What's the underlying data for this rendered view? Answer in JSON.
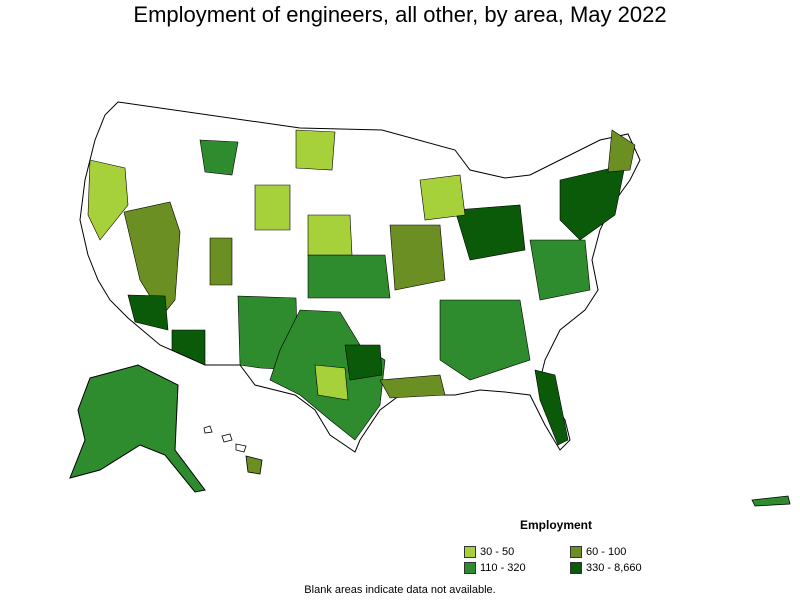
{
  "title": "Employment of engineers, all other, by area, May 2022",
  "legend": {
    "title": "Employment",
    "items": [
      {
        "label": "30 - 50",
        "color": "#a6d13a"
      },
      {
        "label": "60 - 100",
        "color": "#6b8f23"
      },
      {
        "label": "110 - 320",
        "color": "#2e8b2e"
      },
      {
        "label": "330 - 8,660",
        "color": "#0a5a0a"
      }
    ]
  },
  "note": "Blank areas indicate data not available.",
  "colors": {
    "border": "#000000",
    "blank": "#ffffff"
  }
}
